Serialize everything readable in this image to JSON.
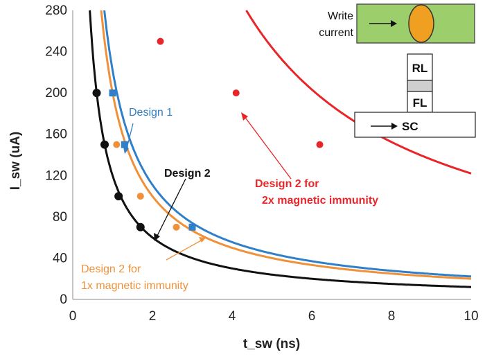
{
  "chart_data": {
    "type": "scatter",
    "title": "",
    "xlabel": "t_sw (ns)",
    "ylabel": "I_sw (uA)",
    "xlim": [
      0,
      10
    ],
    "ylim": [
      0,
      280
    ],
    "xticks": [
      "0",
      "2",
      "4",
      "6",
      "8",
      "10"
    ],
    "yticks": [
      "0",
      "40",
      "80",
      "120",
      "160",
      "200",
      "240",
      "280"
    ],
    "grid": false,
    "series": [
      {
        "name": "Design 1",
        "color": "#2f80c8",
        "marker": "square",
        "points": [
          [
            1.0,
            200
          ],
          [
            1.3,
            150
          ],
          [
            3.0,
            70
          ]
        ],
        "fit": "inverse",
        "fit_k": 222
      },
      {
        "name": "Design 2",
        "color": "#111111",
        "marker": "circle",
        "points": [
          [
            0.6,
            200
          ],
          [
            0.8,
            150
          ],
          [
            1.15,
            100
          ],
          [
            1.7,
            70
          ]
        ],
        "fit": "inverse",
        "fit_k": 120
      },
      {
        "name": "Design 2 for 1x magnetic immunity",
        "color": "#f0913a",
        "marker": "circle",
        "points": [
          [
            1.1,
            150
          ],
          [
            1.7,
            100
          ],
          [
            2.6,
            70
          ]
        ],
        "fit": "inverse",
        "fit_k": 200
      },
      {
        "name": "Design 2 for 2x magnetic immunity",
        "color": "#e8262a",
        "marker": "circle",
        "points": [
          [
            2.2,
            250
          ],
          [
            4.1,
            200
          ],
          [
            6.2,
            150
          ]
        ],
        "fit": "inverse",
        "fit_k": 1220
      }
    ],
    "annotations": {
      "design1": "Design 1",
      "design2": "Design 2",
      "design2_1x_line1": "Design 2 for",
      "design2_1x_line2": "1x magnetic  immunity",
      "design2_2x_line1": "Design 2 for",
      "design2_2x_line2": "2x magnetic immunity"
    },
    "inset": {
      "write_label_line1": "Write",
      "write_label_line2": "current",
      "rl": "RL",
      "fl": "FL",
      "sc": "SC",
      "colors": {
        "green": "#9ccf6c",
        "orange": "#f0a020"
      }
    }
  }
}
